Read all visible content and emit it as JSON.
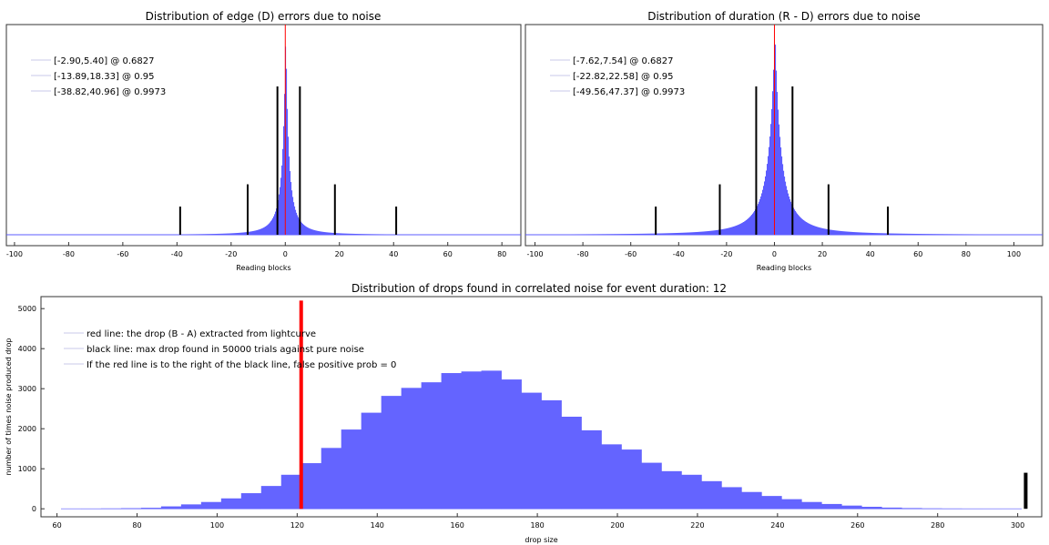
{
  "chart_data": [
    {
      "type": "bar",
      "title": "Distribution of edge (D) errors due to noise",
      "xlabel": "Reading blocks",
      "ylabel": "",
      "xlim": [
        -103,
        87
      ],
      "xticks": [
        -100,
        -80,
        -60,
        -40,
        -20,
        0,
        20,
        40,
        60,
        80
      ],
      "grid": false,
      "legend_position": "top-left",
      "legend": [
        "[-2.90,5.40] @ 0.6827",
        "[-13.89,18.33] @ 0.95",
        "[-38.82,40.96] @ 0.9973"
      ],
      "histogram_peak": 0,
      "red_line_x": 0,
      "interval_lines": [
        {
          "x": -2.9,
          "level": 1.0
        },
        {
          "x": 5.4,
          "level": 1.0
        },
        {
          "x": -13.89,
          "level": 0.34
        },
        {
          "x": 18.33,
          "level": 0.34
        },
        {
          "x": -38.82,
          "level": 0.19
        },
        {
          "x": 40.96,
          "level": 0.19
        }
      ],
      "colors": {
        "bars": "#5c5cff",
        "center_line": "#ff0000",
        "interval_lines": "#000000"
      }
    },
    {
      "type": "bar",
      "title": "Distribution of duration (R - D) errors due to noise",
      "xlabel": "Reading blocks",
      "ylabel": "",
      "xlim": [
        -104,
        112
      ],
      "xticks": [
        -100,
        -80,
        -60,
        -40,
        -20,
        0,
        20,
        40,
        60,
        80,
        100
      ],
      "grid": false,
      "legend_position": "top-left",
      "legend": [
        "[-7.62,7.54] @ 0.6827",
        "[-22.82,22.58] @ 0.95",
        "[-49.56,47.37] @ 0.9973"
      ],
      "histogram_peak": 0,
      "red_line_x": 0,
      "interval_lines": [
        {
          "x": -7.62,
          "level": 1.0
        },
        {
          "x": 7.54,
          "level": 1.0
        },
        {
          "x": -22.82,
          "level": 0.34
        },
        {
          "x": 22.58,
          "level": 0.34
        },
        {
          "x": -49.56,
          "level": 0.19
        },
        {
          "x": 47.37,
          "level": 0.19
        }
      ],
      "colors": {
        "bars": "#5c5cff",
        "center_line": "#ff0000",
        "interval_lines": "#000000"
      }
    },
    {
      "type": "bar",
      "title": "Distribution of drops found in correlated noise for event duration: 12",
      "xlabel": "drop size",
      "ylabel": "number of times noise produced drop",
      "xlim": [
        56,
        306
      ],
      "ylim": [
        -200,
        5300
      ],
      "xticks": [
        60,
        80,
        100,
        120,
        140,
        160,
        180,
        200,
        220,
        240,
        260,
        280,
        300
      ],
      "yticks": [
        0,
        1000,
        2000,
        3000,
        4000,
        5000
      ],
      "grid": false,
      "legend_position": "top-left",
      "legend": [
        "red line: the drop (B - A) extracted from lightcurve",
        "black line: max drop found in 50000 trials against pure noise",
        "If the red line is to the right of the black line, false positive prob = 0"
      ],
      "bin_edges": [
        61,
        66,
        71,
        76,
        81,
        86,
        91,
        96,
        101,
        106,
        111,
        116,
        121,
        126,
        131,
        136,
        141,
        146,
        151,
        156,
        161,
        166,
        171,
        176,
        181,
        186,
        191,
        196,
        201,
        206,
        211,
        216,
        221,
        226,
        231,
        236,
        241,
        246,
        251,
        256,
        261,
        266,
        271,
        276,
        281,
        286,
        291,
        296,
        301
      ],
      "values": [
        2,
        4,
        8,
        15,
        25,
        60,
        110,
        170,
        260,
        390,
        570,
        850,
        1140,
        1520,
        1980,
        2400,
        2820,
        3020,
        3160,
        3390,
        3430,
        3450,
        3230,
        2900,
        2710,
        2300,
        1960,
        1610,
        1480,
        1150,
        940,
        850,
        690,
        540,
        420,
        320,
        240,
        170,
        120,
        80,
        50,
        30,
        18,
        10,
        6,
        3,
        2,
        1
      ],
      "red_line": {
        "x": 121,
        "height": 5200
      },
      "black_line": {
        "x": 302,
        "height": 900
      },
      "colors": {
        "bars": "#6464ff",
        "red_line": "#ff0000",
        "black_line": "#000000"
      }
    }
  ]
}
